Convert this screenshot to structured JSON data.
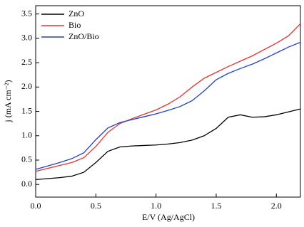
{
  "chart_data": {
    "type": "line",
    "xlabel": "E/V (Ag/AgCl)",
    "ylabel": "j (mA cm⁻²)",
    "x": [
      0,
      0.1,
      0.2,
      0.3,
      0.4,
      0.5,
      0.6,
      0.7,
      0.8,
      0.9,
      1.0,
      1.1,
      1.2,
      1.3,
      1.4,
      1.5,
      1.6,
      1.7,
      1.8,
      1.9,
      2.0,
      2.1,
      2.2
    ],
    "series": [
      {
        "name": "ZnO",
        "color": "#000000",
        "values": [
          0.1,
          0.12,
          0.14,
          0.17,
          0.25,
          0.45,
          0.68,
          0.77,
          0.79,
          0.8,
          0.81,
          0.83,
          0.86,
          0.91,
          1.0,
          1.15,
          1.38,
          1.43,
          1.38,
          1.39,
          1.43,
          1.49,
          1.55
        ]
      },
      {
        "name": "Bio",
        "color": "#e8312f",
        "values": [
          0.27,
          0.33,
          0.39,
          0.45,
          0.55,
          0.78,
          1.07,
          1.25,
          1.35,
          1.44,
          1.53,
          1.65,
          1.8,
          2.0,
          2.18,
          2.3,
          2.42,
          2.53,
          2.64,
          2.77,
          2.9,
          3.05,
          3.3
        ]
      },
      {
        "name": "ZnO/Bio",
        "color": "#1f3fd8",
        "values": [
          0.31,
          0.38,
          0.45,
          0.53,
          0.65,
          0.92,
          1.16,
          1.27,
          1.33,
          1.39,
          1.45,
          1.52,
          1.6,
          1.72,
          1.92,
          2.15,
          2.28,
          2.38,
          2.47,
          2.58,
          2.7,
          2.82,
          2.92
        ]
      }
    ],
    "xlim": [
      0,
      2.2
    ],
    "ylim": [
      -0.26,
      3.67
    ],
    "xticks": [
      {
        "value": 0,
        "label": "0.0"
      },
      {
        "value": 0.5,
        "label": "0.5"
      },
      {
        "value": 1,
        "label": "1.0"
      },
      {
        "value": 1.5,
        "label": "1.5"
      },
      {
        "value": 2,
        "label": "2.0"
      }
    ],
    "yticks": [
      {
        "value": 0,
        "label": "0.0"
      },
      {
        "value": 0.5,
        "label": "0.5"
      },
      {
        "value": 1,
        "label": "1.0"
      },
      {
        "value": 1.5,
        "label": "1.5"
      },
      {
        "value": 2,
        "label": "2.0"
      },
      {
        "value": 2.5,
        "label": "2.5"
      },
      {
        "value": 3,
        "label": "3.0"
      },
      {
        "value": 3.5,
        "label": "3.5"
      }
    ],
    "legend": "upper-left"
  }
}
